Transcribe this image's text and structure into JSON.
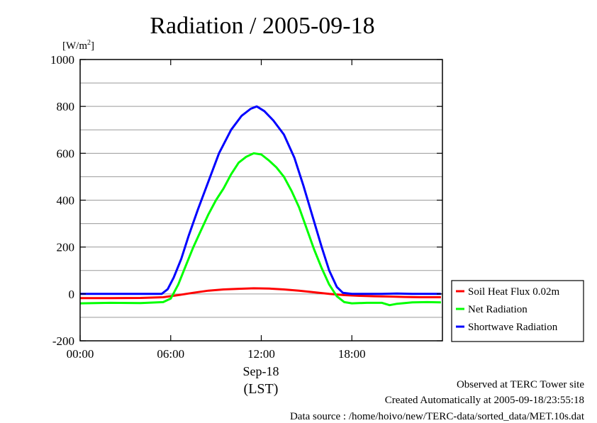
{
  "chart_data": {
    "type": "line",
    "title": "Radiation / 2005-09-18",
    "ylabel": "[W/m",
    "ylabel_superscript": "2",
    "ylabel_suffix": "]",
    "xlabel_date": "Sep-18",
    "xlabel_unit": "(LST)",
    "x_unit": "hours",
    "xlim": [
      0,
      24
    ],
    "ylim": [
      -200,
      1000
    ],
    "x_ticks": [
      0,
      6,
      12,
      18
    ],
    "x_tick_labels": [
      "00:00",
      "06:00",
      "12:00",
      "18:00"
    ],
    "y_ticks": [
      -200,
      0,
      200,
      400,
      600,
      800,
      1000
    ],
    "y_tick_labels": [
      "-200",
      "0",
      "200",
      "400",
      "600",
      "800",
      "1000"
    ],
    "y_grid": [
      -100,
      100,
      300,
      500,
      700,
      900
    ],
    "grid": true,
    "legend_position": "right",
    "series": [
      {
        "name": "Soil Heat Flux 0.02m",
        "color": "#ff0000",
        "points": [
          [
            0,
            -18
          ],
          [
            2,
            -18
          ],
          [
            4,
            -17
          ],
          [
            5.5,
            -14
          ],
          [
            6.5,
            -5
          ],
          [
            7.5,
            5
          ],
          [
            8.5,
            14
          ],
          [
            9.5,
            19
          ],
          [
            10.5,
            22
          ],
          [
            11.5,
            24
          ],
          [
            12.5,
            23
          ],
          [
            13.5,
            19
          ],
          [
            14.5,
            14
          ],
          [
            15.5,
            7
          ],
          [
            16.5,
            0
          ],
          [
            17.5,
            -5
          ],
          [
            18.5,
            -8
          ],
          [
            19.5,
            -10
          ],
          [
            20.5,
            -11
          ],
          [
            21.5,
            -13
          ],
          [
            22.5,
            -14
          ],
          [
            23.9,
            -14
          ]
        ]
      },
      {
        "name": "Net Radiation",
        "color": "#00ff00",
        "points": [
          [
            0,
            -40
          ],
          [
            2,
            -38
          ],
          [
            4,
            -39
          ],
          [
            5.5,
            -35
          ],
          [
            6,
            -20
          ],
          [
            6.5,
            40
          ],
          [
            7,
            120
          ],
          [
            7.5,
            200
          ],
          [
            8,
            270
          ],
          [
            8.5,
            340
          ],
          [
            9,
            400
          ],
          [
            9.5,
            450
          ],
          [
            10,
            510
          ],
          [
            10.5,
            560
          ],
          [
            11,
            585
          ],
          [
            11.5,
            600
          ],
          [
            12,
            595
          ],
          [
            12.5,
            570
          ],
          [
            13,
            540
          ],
          [
            13.5,
            500
          ],
          [
            14,
            440
          ],
          [
            14.5,
            370
          ],
          [
            15,
            280
          ],
          [
            15.5,
            190
          ],
          [
            16,
            110
          ],
          [
            16.5,
            40
          ],
          [
            17,
            -10
          ],
          [
            17.5,
            -35
          ],
          [
            18,
            -40
          ],
          [
            19,
            -38
          ],
          [
            20,
            -38
          ],
          [
            20.5,
            -48
          ],
          [
            21,
            -42
          ],
          [
            22,
            -36
          ],
          [
            23,
            -35
          ],
          [
            23.9,
            -36
          ]
        ]
      },
      {
        "name": "Shortwave Radiation",
        "color": "#0000ff",
        "points": [
          [
            0,
            0
          ],
          [
            2,
            0
          ],
          [
            4,
            0
          ],
          [
            5.4,
            0
          ],
          [
            5.8,
            20
          ],
          [
            6.2,
            70
          ],
          [
            6.7,
            150
          ],
          [
            7.2,
            250
          ],
          [
            7.8,
            360
          ],
          [
            8.5,
            480
          ],
          [
            9.2,
            600
          ],
          [
            10,
            700
          ],
          [
            10.7,
            760
          ],
          [
            11.3,
            790
          ],
          [
            11.7,
            800
          ],
          [
            12.2,
            780
          ],
          [
            12.8,
            740
          ],
          [
            13.5,
            680
          ],
          [
            14.2,
            580
          ],
          [
            14.8,
            460
          ],
          [
            15.4,
            330
          ],
          [
            16,
            200
          ],
          [
            16.5,
            100
          ],
          [
            17,
            30
          ],
          [
            17.4,
            5
          ],
          [
            18,
            0
          ],
          [
            19,
            0
          ],
          [
            20,
            0
          ],
          [
            21,
            2
          ],
          [
            22,
            0
          ],
          [
            23.9,
            0
          ]
        ]
      }
    ]
  },
  "footer": {
    "observed": "Observed at TERC Tower site",
    "created": "Created Automatically at 2005-09-18/23:55:18",
    "source": "Data source : /home/hoivo/new/TERC-data/sorted_data/MET.10s.dat"
  }
}
